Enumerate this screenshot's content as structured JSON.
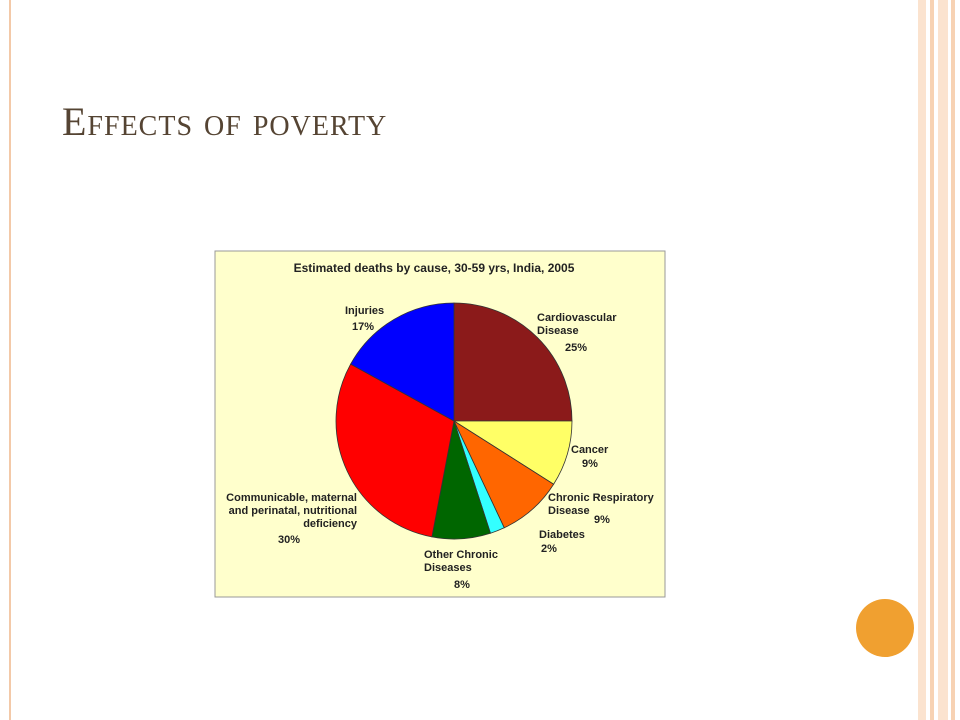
{
  "slide": {
    "title": "Effects of poverty"
  },
  "chart_data": {
    "type": "pie",
    "title": "Estimated deaths by cause, 30-59 yrs, India, 2005",
    "categories": [
      "Cardiovascular Disease",
      "Cancer",
      "Chronic Respiratory Disease",
      "Diabetes",
      "Other Chronic Diseases",
      "Communicable, maternal and perinatal, nutritional deficiency",
      "Injuries"
    ],
    "values": [
      25,
      9,
      9,
      2,
      8,
      30,
      17
    ],
    "value_labels": [
      "25%",
      "9%",
      "9%",
      "2%",
      "8%",
      "30%",
      "17%"
    ],
    "colors": [
      "#8b1a1a",
      "#ffff66",
      "#ff6600",
      "#33ffff",
      "#006600",
      "#ff0000",
      "#0000ff"
    ]
  }
}
